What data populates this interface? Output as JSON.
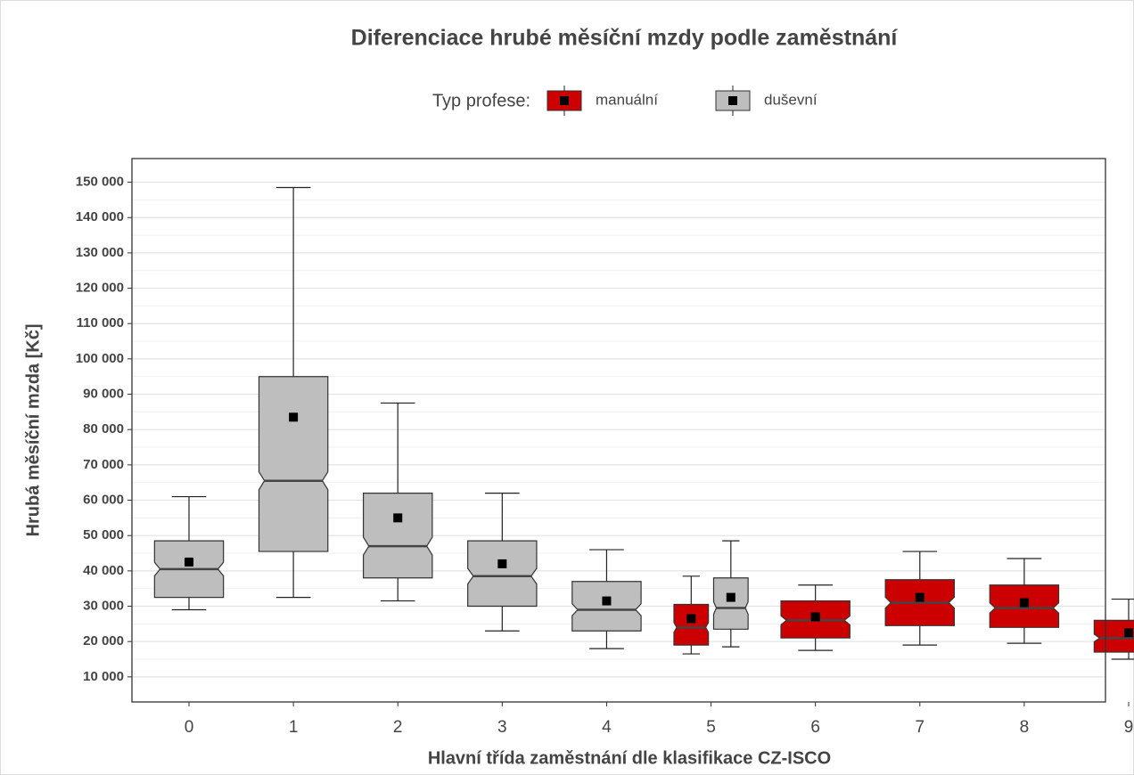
{
  "chart_data": {
    "type": "box",
    "title": "Diferenciace hrubé měsíční mzdy podle zaměstnání",
    "legend_title": "Typ profese:",
    "x_label": "Hlavní třída zaměstnání dle klasifikace CZ-ISCO",
    "y_label": "Hrubá měsíční mzda [Kč]",
    "categories": [
      "0",
      "1",
      "2",
      "3",
      "4",
      "5",
      "6",
      "7",
      "8",
      "9"
    ],
    "series": [
      {
        "name": "manuální",
        "color": "#cc0000",
        "boxes": [
          {
            "category": "5",
            "min": 16500,
            "q1": 19000,
            "median": 24000,
            "q3": 30500,
            "max": 38500,
            "mean": 26500
          },
          {
            "category": "6",
            "min": 17500,
            "q1": 21000,
            "median": 26000,
            "q3": 31500,
            "max": 36000,
            "mean": 27000
          },
          {
            "category": "7",
            "min": 19000,
            "q1": 24500,
            "median": 31000,
            "q3": 37500,
            "max": 45500,
            "mean": 32500
          },
          {
            "category": "8",
            "min": 19500,
            "q1": 24000,
            "median": 29500,
            "q3": 36000,
            "max": 43500,
            "mean": 31000
          },
          {
            "category": "9",
            "min": 15000,
            "q1": 17000,
            "median": 21000,
            "q3": 26000,
            "max": 32000,
            "mean": 22500
          }
        ]
      },
      {
        "name": "duševní",
        "color": "#bebebe",
        "boxes": [
          {
            "category": "0",
            "min": 29000,
            "q1": 32500,
            "median": 40500,
            "q3": 48500,
            "max": 61000,
            "mean": 42500
          },
          {
            "category": "1",
            "min": 32500,
            "q1": 45500,
            "median": 65500,
            "q3": 95000,
            "max": 148500,
            "mean": 83500
          },
          {
            "category": "2",
            "min": 31500,
            "q1": 38000,
            "median": 47000,
            "q3": 62000,
            "max": 87500,
            "mean": 55000
          },
          {
            "category": "3",
            "min": 23000,
            "q1": 30000,
            "median": 38500,
            "q3": 48500,
            "max": 62000,
            "mean": 42000
          },
          {
            "category": "4",
            "min": 18000,
            "q1": 23000,
            "median": 29000,
            "q3": 37000,
            "max": 46000,
            "mean": 31500
          },
          {
            "category": "5",
            "min": 18500,
            "q1": 23500,
            "median": 29500,
            "q3": 38000,
            "max": 48500,
            "mean": 32500
          }
        ]
      }
    ],
    "ylim": [
      2900,
      156700
    ],
    "yticks": [
      {
        "value": 10000,
        "label": "10 000"
      },
      {
        "value": 20000,
        "label": "20 000"
      },
      {
        "value": 30000,
        "label": "30 000"
      },
      {
        "value": 40000,
        "label": "40 000"
      },
      {
        "value": 50000,
        "label": "50 000"
      },
      {
        "value": 60000,
        "label": "60 000"
      },
      {
        "value": 70000,
        "label": "70 000"
      },
      {
        "value": 80000,
        "label": "80 000"
      },
      {
        "value": 90000,
        "label": "90 000"
      },
      {
        "value": 100000,
        "label": "100 000"
      },
      {
        "value": 110000,
        "label": "110 000"
      },
      {
        "value": 120000,
        "label": "120 000"
      },
      {
        "value": 130000,
        "label": "130 000"
      },
      {
        "value": 140000,
        "label": "140 000"
      },
      {
        "value": 150000,
        "label": "150 000"
      }
    ],
    "grid": true,
    "legend_position": "top"
  }
}
